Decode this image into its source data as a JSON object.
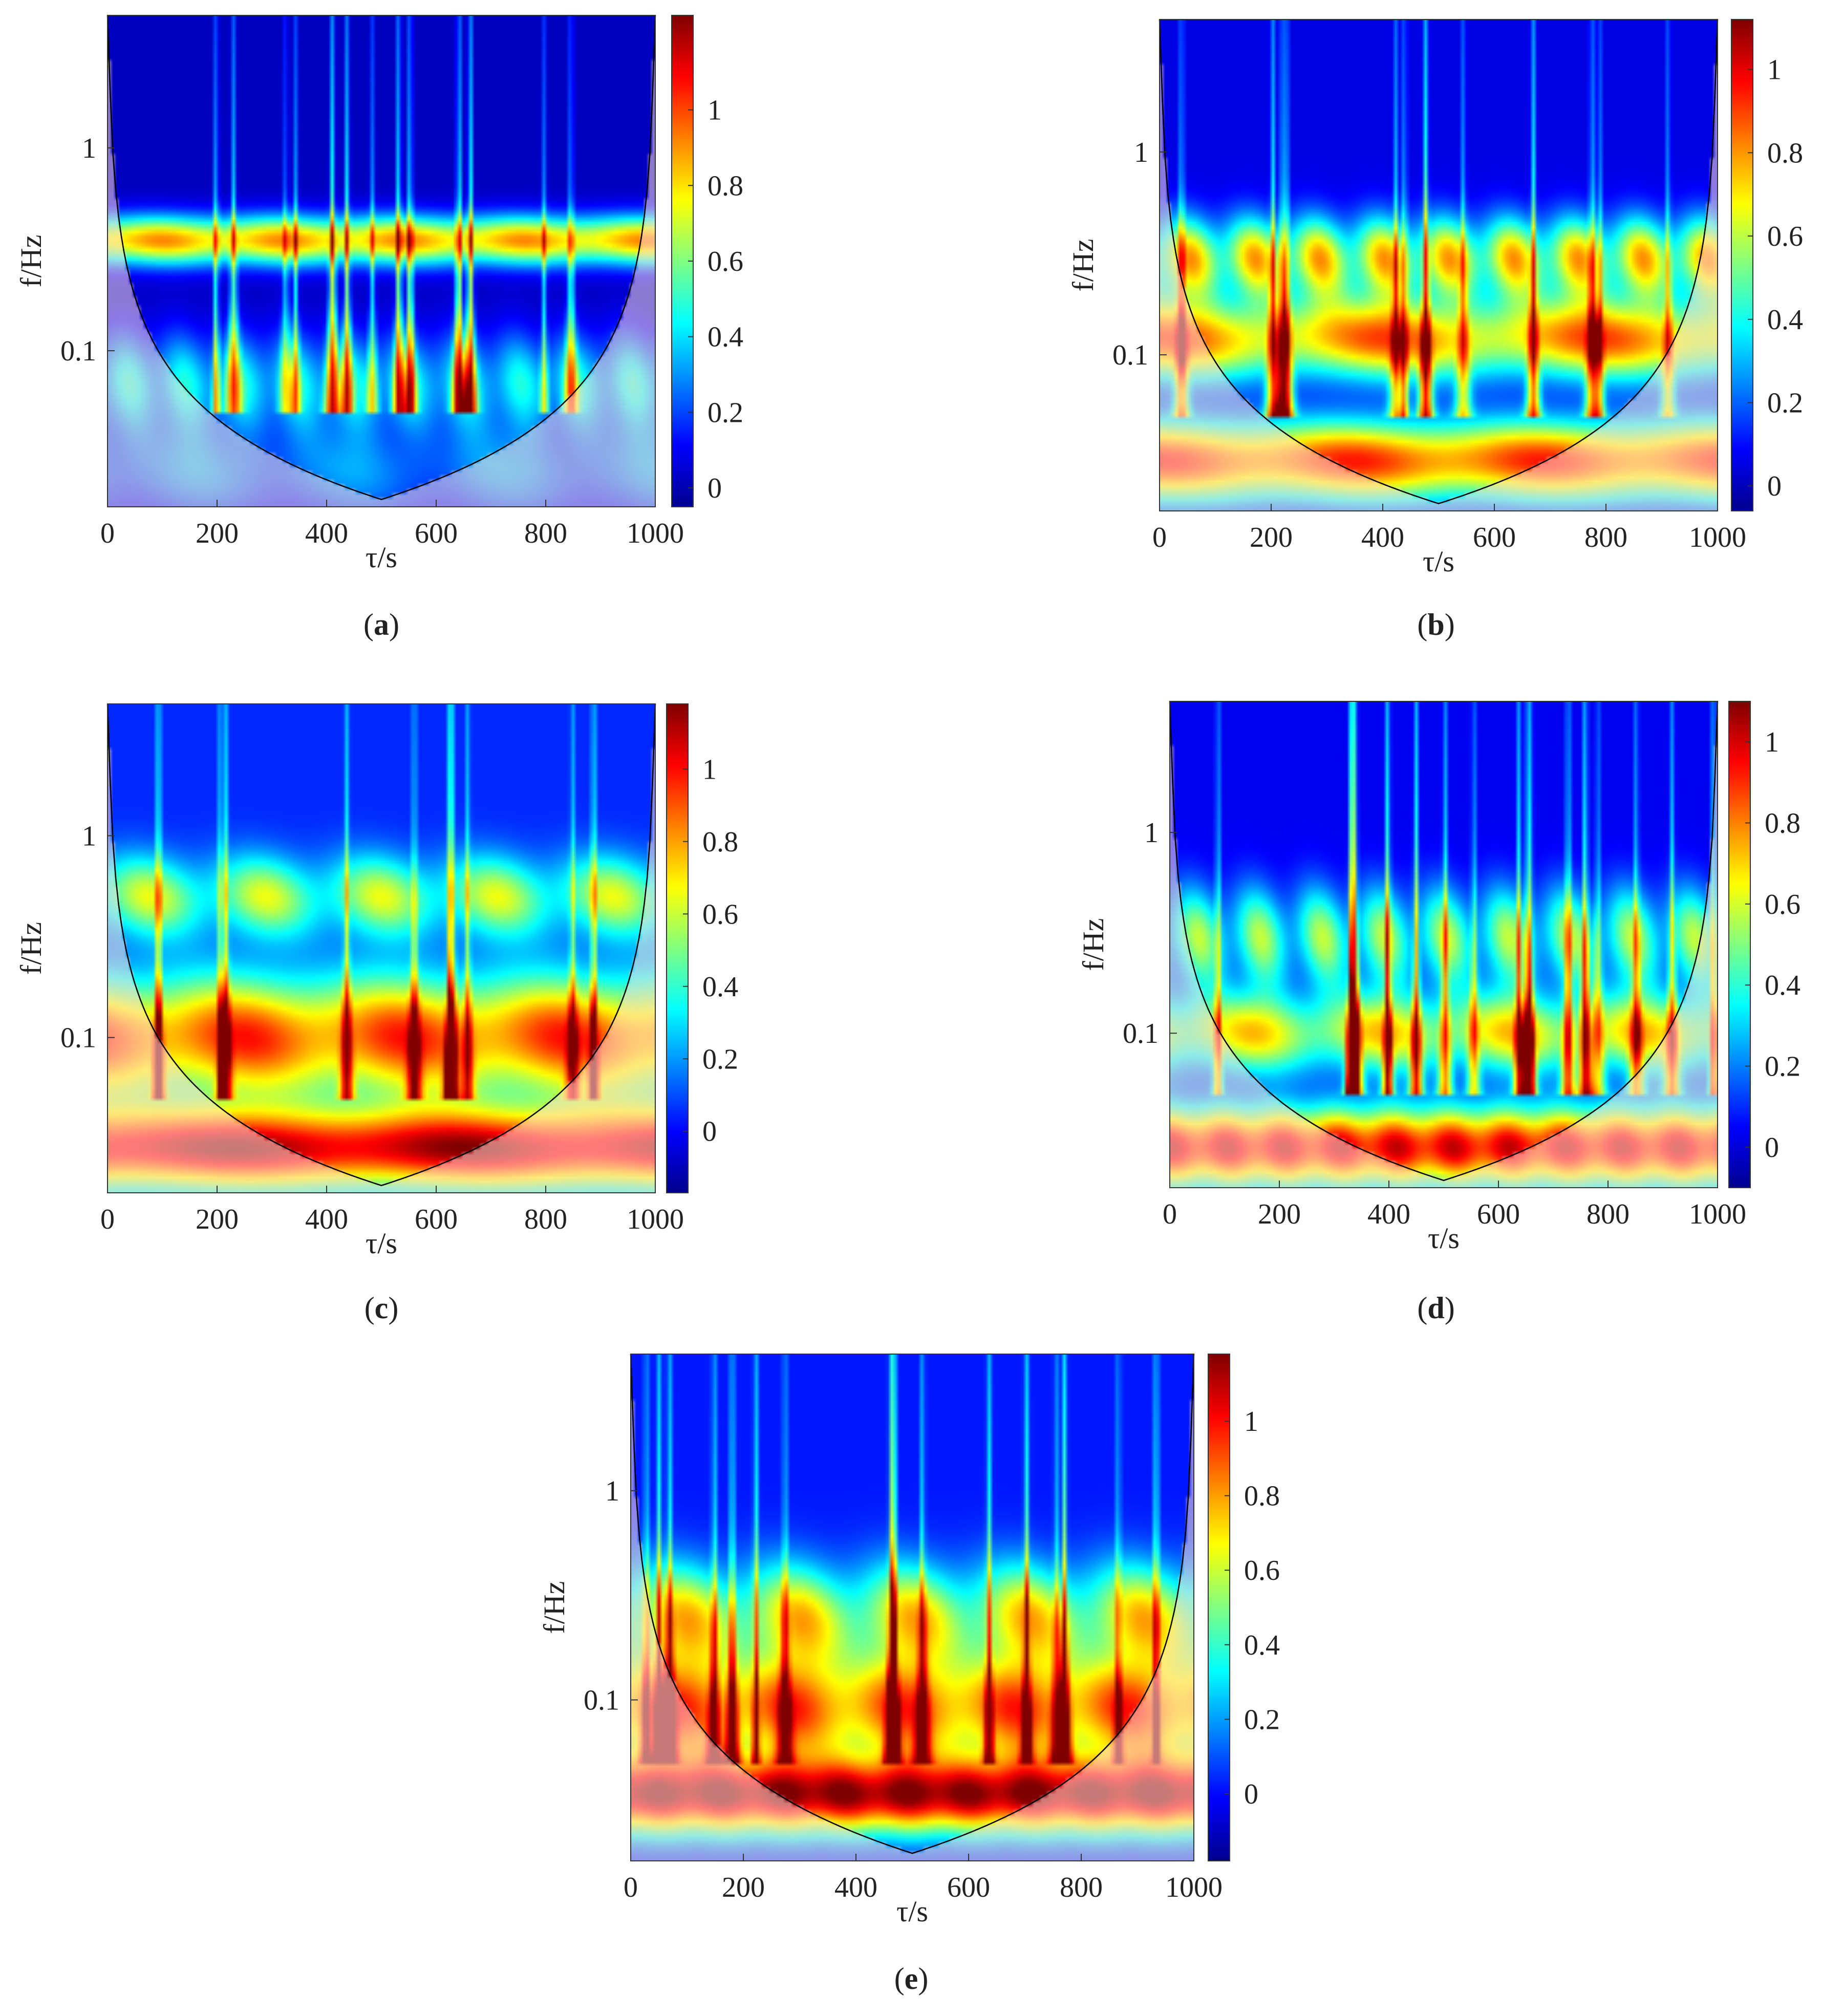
{
  "figure": {
    "panel_captions": [
      "(a)",
      "(b)",
      "(c)",
      "(d)",
      "(e)"
    ]
  },
  "colors": {
    "colormap": [
      "#00008f",
      "#0000ff",
      "#0080ff",
      "#00ffff",
      "#80ff80",
      "#ffff00",
      "#ff8000",
      "#ff0000",
      "#800000"
    ],
    "coi_line": "#000000",
    "coi_overlay": "#ffffff"
  },
  "chart_data": [
    {
      "type": "heatmap",
      "panel": "a",
      "caption": "(a)",
      "xlabel": "τ/s",
      "ylabel": "f/Hz",
      "xlim": [
        0,
        1000
      ],
      "xticks": [
        0,
        200,
        400,
        600,
        800,
        1000
      ],
      "y_scale": "log",
      "ylim": [
        0.017,
        4.5
      ],
      "yticks": [
        0.1,
        1
      ],
      "ytick_labels": [
        "0.1",
        "1"
      ],
      "colorbar": {
        "ticks": [
          0,
          0.2,
          0.4,
          0.6,
          0.8,
          1
        ],
        "range": [
          -0.05,
          1.25
        ]
      },
      "cone_of_influence": true,
      "power_bands": [
        {
          "f": 0.35,
          "level": 0.9,
          "width": 0.12,
          "mod": 0.2
        },
        {
          "f": 0.07,
          "level": 0.45,
          "width": 0.25,
          "mod": 0.4
        },
        {
          "f": 0.025,
          "level": 0.3,
          "width": 0.25,
          "mod": 0.4
        }
      ],
      "background_level": 0.02
    },
    {
      "type": "heatmap",
      "panel": "b",
      "caption": "(b)",
      "xlabel": "τ/s",
      "ylabel": "f/Hz",
      "xlim": [
        0,
        1000
      ],
      "xticks": [
        0,
        200,
        400,
        600,
        800,
        1000
      ],
      "y_scale": "log",
      "ylim": [
        0.017,
        4.5
      ],
      "yticks": [
        0.1,
        1
      ],
      "ytick_labels": [
        "0.1",
        "1"
      ],
      "colorbar": {
        "ticks": [
          0,
          0.2,
          0.4,
          0.6,
          0.8,
          1
        ],
        "range": [
          -0.06,
          1.12
        ]
      },
      "cone_of_influence": true,
      "power_bands": [
        {
          "f": 0.3,
          "level": 0.75,
          "width": 0.2,
          "mod": 0.5
        },
        {
          "f": 0.12,
          "level": 0.85,
          "width": 0.2,
          "mod": 0.35
        },
        {
          "f": 0.03,
          "level": 0.9,
          "width": 0.2,
          "mod": 0.2
        }
      ],
      "background_level": 0.05
    },
    {
      "type": "heatmap",
      "panel": "c",
      "caption": "(c)",
      "xlabel": "τ/s",
      "ylabel": "f/Hz",
      "xlim": [
        0,
        1000
      ],
      "xticks": [
        0,
        200,
        400,
        600,
        800,
        1000
      ],
      "y_scale": "log",
      "ylim": [
        0.017,
        4.5
      ],
      "yticks": [
        0.1,
        1
      ],
      "ytick_labels": [
        "0.1",
        "1"
      ],
      "colorbar": {
        "ticks": [
          0,
          0.2,
          0.4,
          0.6,
          0.8,
          1
        ],
        "range": [
          -0.17,
          1.18
        ]
      },
      "cone_of_influence": true,
      "power_bands": [
        {
          "f": 0.5,
          "level": 0.6,
          "width": 0.2,
          "mod": 0.55
        },
        {
          "f": 0.1,
          "level": 0.95,
          "width": 0.3,
          "mod": 0.25
        },
        {
          "f": 0.028,
          "level": 1.1,
          "width": 0.2,
          "mod": 0.15
        }
      ],
      "background_level": 0.05
    },
    {
      "type": "heatmap",
      "panel": "d",
      "caption": "(d)",
      "xlabel": "τ/s",
      "ylabel": "f/Hz",
      "xlim": [
        0,
        1000
      ],
      "xticks": [
        0,
        200,
        400,
        600,
        800,
        1000
      ],
      "y_scale": "log",
      "ylim": [
        0.017,
        4.5
      ],
      "yticks": [
        0.1,
        1
      ],
      "ytick_labels": [
        "0.1",
        "1"
      ],
      "colorbar": {
        "ticks": [
          0,
          0.2,
          0.4,
          0.6,
          0.8,
          1
        ],
        "range": [
          -0.1,
          1.1
        ]
      },
      "cone_of_influence": true,
      "power_bands": [
        {
          "f": 0.3,
          "level": 0.55,
          "width": 0.25,
          "mod": 0.6
        },
        {
          "f": 0.1,
          "level": 0.7,
          "width": 0.2,
          "mod": 0.4
        },
        {
          "f": 0.027,
          "level": 1.0,
          "width": 0.2,
          "mod": 0.15
        }
      ],
      "background_level": 0.03
    },
    {
      "type": "heatmap",
      "panel": "e",
      "caption": "(e)",
      "xlabel": "τ/s",
      "ylabel": "f/Hz",
      "xlim": [
        0,
        1000
      ],
      "xticks": [
        0,
        200,
        400,
        600,
        800,
        1000
      ],
      "y_scale": "log",
      "ylim": [
        0.017,
        4.5
      ],
      "yticks": [
        0.1,
        1
      ],
      "ytick_labels": [
        "0.1",
        "1"
      ],
      "colorbar": {
        "ticks": [
          0,
          0.2,
          0.4,
          0.6,
          0.8,
          1
        ],
        "range": [
          -0.18,
          1.18
        ]
      },
      "cone_of_influence": true,
      "power_bands": [
        {
          "f": 0.25,
          "level": 0.75,
          "width": 0.25,
          "mod": 0.5
        },
        {
          "f": 0.09,
          "level": 0.95,
          "width": 0.25,
          "mod": 0.3
        },
        {
          "f": 0.035,
          "level": 1.15,
          "width": 0.18,
          "mod": 0.1
        }
      ],
      "background_level": 0.02
    }
  ]
}
